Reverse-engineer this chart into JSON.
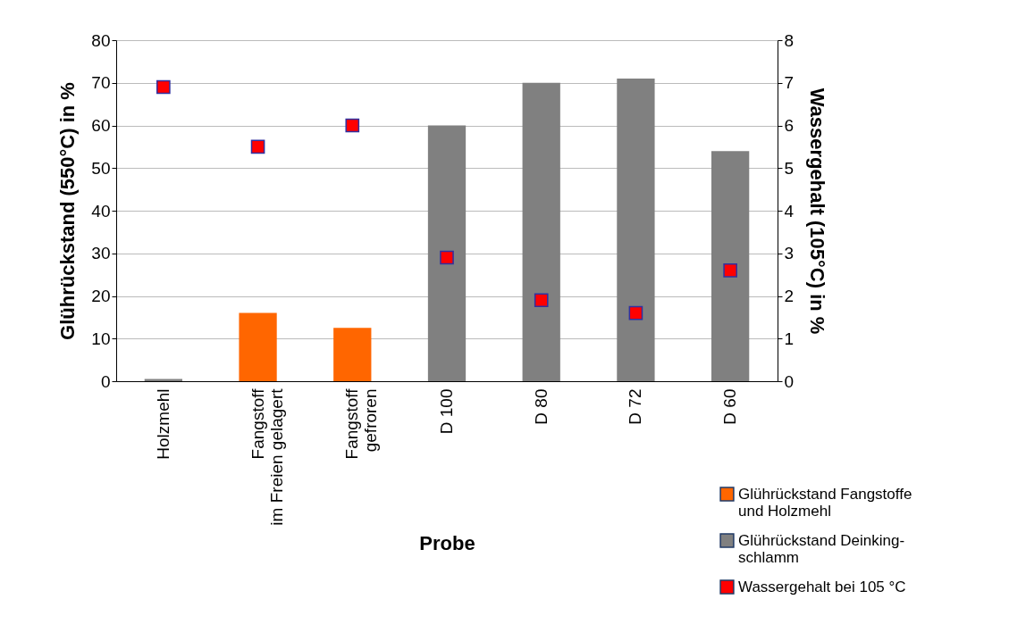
{
  "chart_data": {
    "type": "bar",
    "xlabel": "Probe",
    "ylabel": "Glührückstand  (550°C) in %",
    "y2label": "Wassergehalt  (105°C) in %",
    "categories": [
      "Holzmehl",
      "Fangstoff\nim Freien gelagert",
      "Fangstoff\ngefroren",
      "D 100",
      "D 80",
      "D 72",
      "D 60"
    ],
    "series": [
      {
        "name": "Glührückstand Fangstoffe\nund Holzmehl",
        "color": "#ff6600",
        "values": [
          null,
          16,
          12.5,
          null,
          null,
          null,
          null
        ]
      },
      {
        "name": "Glührückstand Deinking-\nschlamm",
        "color": "#808080",
        "values": [
          0.5,
          null,
          null,
          60,
          70,
          71,
          54
        ]
      },
      {
        "name": "Wassergehalt bei 105 °C",
        "type": "scatter",
        "axis": "y2",
        "color": "#ff0000",
        "marker": "square",
        "values": [
          6.9,
          5.5,
          6.0,
          2.9,
          1.9,
          1.6,
          2.6
        ]
      }
    ],
    "ylim": [
      0,
      80
    ],
    "yticks": [
      0,
      10,
      20,
      30,
      40,
      50,
      60,
      70,
      80
    ],
    "y2lim": [
      0,
      8
    ],
    "y2ticks": [
      0,
      1,
      2,
      3,
      4,
      5,
      6,
      7,
      8
    ],
    "grid": "y",
    "legend": "bottom right"
  }
}
